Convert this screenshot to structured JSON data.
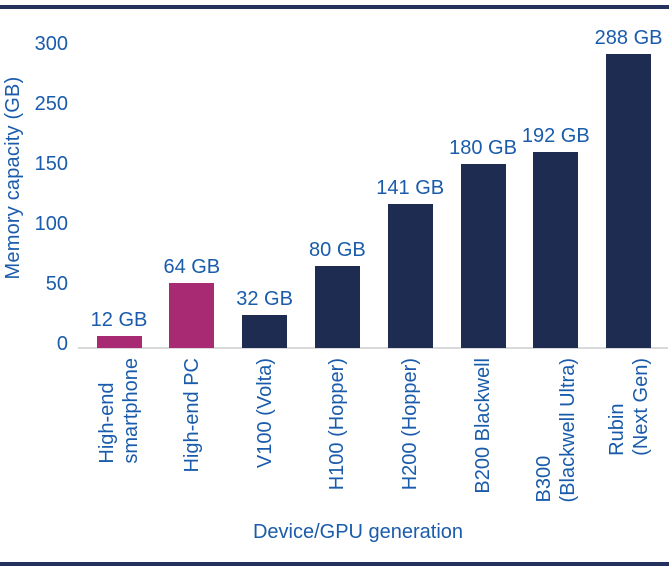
{
  "colors": {
    "navy_bar": "#1e2c52",
    "magenta_bar": "#a82a72",
    "label_blue": "#1a5cab",
    "axis_line_gray": "#d9d9d9",
    "rule_navy": "#25325e"
  },
  "chart_data": {
    "type": "bar",
    "title": "",
    "xlabel": "Device/GPU generation",
    "ylabel": "Memory capacity (GB)",
    "categories": [
      "High-end\nsmartphone",
      "High-end PC",
      "V100 (Volta)",
      "H100 (Hopper)",
      "H200 (Hopper)",
      "B200 Blackwell",
      "B300\n(Blackwell Ultra)",
      "Rubin\n(Next Gen)"
    ],
    "values": [
      12,
      64,
      32,
      80,
      141,
      180,
      192,
      288
    ],
    "data_labels": [
      "12 GB",
      "64 GB",
      "32 GB",
      "80 GB",
      "141 GB",
      "180 GB",
      "192 GB",
      "288 GB"
    ],
    "bar_colors": [
      "#a82a72",
      "#a82a72",
      "#1e2c52",
      "#1e2c52",
      "#1e2c52",
      "#1e2c52",
      "#1e2c52",
      "#1e2c52"
    ],
    "y_axis_tick_labels": [
      "300",
      "250",
      "150",
      "100",
      "50",
      "0"
    ],
    "ylim": [
      0,
      300
    ],
    "grid": false,
    "legend": "none"
  }
}
